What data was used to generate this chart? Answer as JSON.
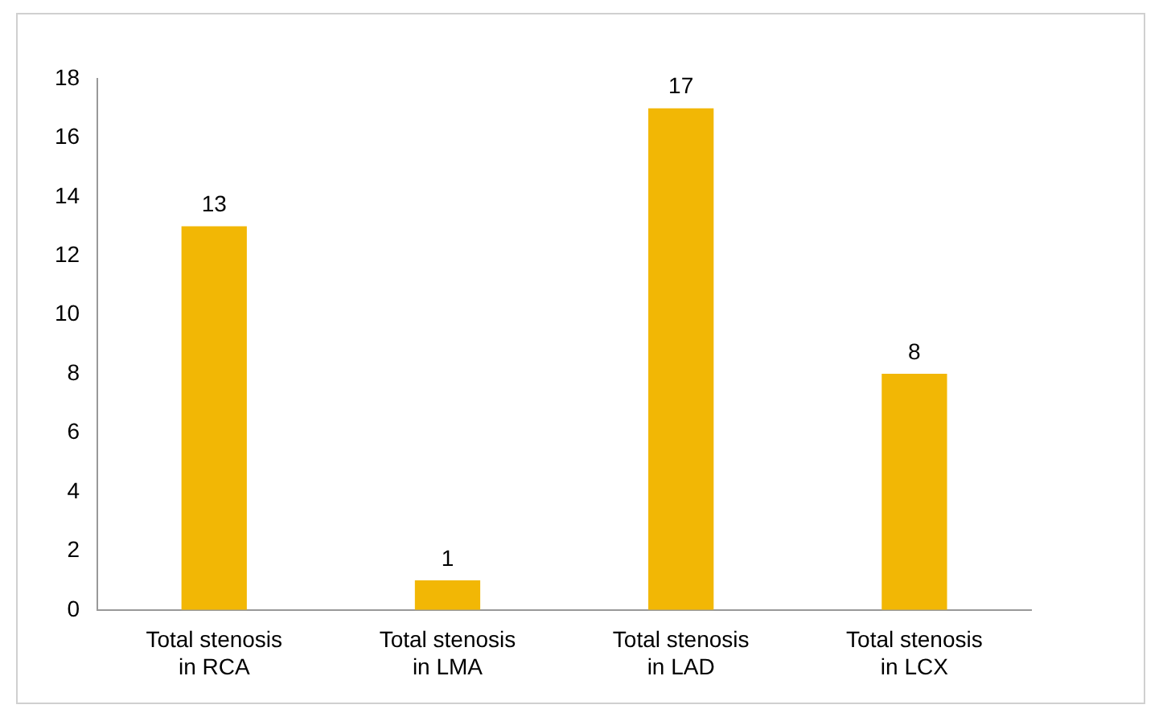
{
  "chart_data": {
    "type": "bar",
    "categories": [
      "Total stenosis in RCA",
      "Total stenosis in LMA",
      "Total stenosis in LAD",
      "Total stenosis in LCX"
    ],
    "values": [
      13,
      1,
      17,
      8
    ],
    "color": "#f2b705",
    "ylim": [
      0,
      18
    ],
    "yticks": [
      0,
      2,
      4,
      6,
      8,
      10,
      12,
      14,
      16,
      18
    ],
    "grid": false,
    "legend": false,
    "data_labels": true
  }
}
